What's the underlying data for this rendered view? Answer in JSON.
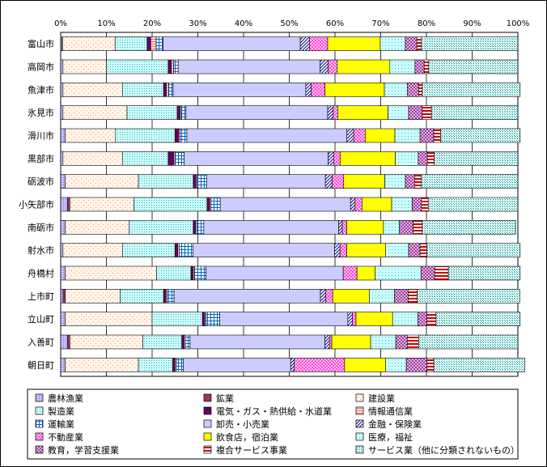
{
  "chart_data": {
    "type": "bar",
    "orientation": "horizontal",
    "stacked": "percent",
    "xlim": [
      0,
      100
    ],
    "x_ticks": [
      "0%",
      "10%",
      "20%",
      "30%",
      "40%",
      "50%",
      "60%",
      "70%",
      "80%",
      "90%",
      "100%"
    ],
    "grid": true,
    "legend_position": "bottom",
    "categories": [
      "富山市",
      "高岡市",
      "魚津市",
      "氷見市",
      "滑川市",
      "黒部市",
      "砺波市",
      "小矢部市",
      "南砺市",
      "射水市",
      "舟橋村",
      "上市町",
      "立山町",
      "入善町",
      "朝日町"
    ],
    "series": [
      {
        "name": "農林漁業",
        "color": "#c0c0ff",
        "values": [
          0.3,
          0.5,
          0.5,
          0.5,
          1.0,
          0.5,
          1.0,
          1.5,
          1.0,
          0.5,
          1.0,
          0.5,
          1.0,
          1.5,
          1.0
        ]
      },
      {
        "name": "鉱業",
        "color": "#993366",
        "values": [
          0.1,
          0.0,
          0.0,
          0.0,
          0.0,
          0.0,
          0.0,
          0.5,
          0.0,
          0.0,
          0.0,
          0.5,
          0.0,
          0.5,
          0.0
        ]
      },
      {
        "name": "建設業",
        "color": "#ffeedd",
        "values": [
          11.5,
          9.5,
          13.0,
          14.0,
          11.0,
          13.0,
          16.0,
          14.0,
          14.0,
          13.0,
          20.0,
          12.0,
          19.0,
          16.0,
          16.0
        ]
      },
      {
        "name": "製造業",
        "color": "#ccffff",
        "values": [
          7.0,
          13.5,
          9.0,
          11.0,
          13.0,
          10.0,
          12.0,
          16.0,
          14.0,
          11.5,
          7.5,
          9.5,
          11.0,
          8.5,
          7.5
        ]
      },
      {
        "name": "電気・ガス・熱供給・水道業",
        "color": "#660066",
        "values": [
          0.8,
          0.7,
          0.6,
          0.6,
          0.8,
          1.2,
          0.6,
          0.6,
          0.5,
          0.6,
          0.5,
          0.5,
          0.5,
          0.5,
          0.5
        ]
      },
      {
        "name": "情報通信業",
        "color": "#ff9999",
        "values": [
          1.2,
          0.5,
          0.5,
          0.3,
          0.3,
          0.3,
          0.3,
          0.3,
          0.3,
          0.3,
          0.3,
          0.3,
          0.3,
          0.3,
          0.3
        ]
      },
      {
        "name": "運輸業",
        "color": "#0066cc",
        "values": [
          1.5,
          1.0,
          1.0,
          1.0,
          1.5,
          2.0,
          2.0,
          2.0,
          1.5,
          3.0,
          2.5,
          1.5,
          3.0,
          1.0,
          1.5
        ]
      },
      {
        "name": "卸売・小売業",
        "color": "#ccccff",
        "values": [
          30.0,
          31.0,
          29.0,
          31.0,
          35.0,
          31.5,
          26.0,
          28.5,
          29.5,
          31.0,
          30.0,
          32.0,
          28.0,
          29.5,
          23.5
        ]
      },
      {
        "name": "金融・保険業",
        "color": "#000080",
        "values": [
          2.0,
          1.8,
          1.2,
          1.2,
          1.5,
          1.2,
          1.5,
          1.0,
          0.8,
          1.2,
          0.0,
          1.2,
          1.0,
          1.0,
          0.8
        ]
      },
      {
        "name": "不動産業",
        "color": "#ff00ff",
        "values": [
          4.0,
          2.0,
          3.0,
          1.0,
          2.5,
          1.5,
          2.5,
          1.5,
          1.0,
          1.5,
          3.0,
          1.5,
          0.8,
          0.5,
          11.0
        ]
      },
      {
        "name": "飲食店，宿泊業",
        "color": "#ffff00",
        "values": [
          11.5,
          11.5,
          13.0,
          11.0,
          6.5,
          12.0,
          9.0,
          6.5,
          8.0,
          8.5,
          4.0,
          8.0,
          8.0,
          8.5,
          9.0
        ]
      },
      {
        "name": "医療，福祉",
        "color": "#00ffff",
        "values": [
          5.5,
          5.5,
          5.0,
          4.5,
          5.5,
          5.0,
          4.5,
          4.5,
          3.5,
          5.0,
          10.0,
          5.5,
          5.5,
          5.5,
          4.5
        ]
      },
      {
        "name": "教育，学習支援業",
        "color": "#800080",
        "values": [
          2.5,
          2.0,
          2.5,
          3.0,
          3.0,
          2.0,
          2.0,
          2.0,
          3.0,
          2.5,
          3.0,
          3.0,
          2.0,
          2.5,
          4.5
        ]
      },
      {
        "name": "複合サービス事業",
        "color": "#800000",
        "values": [
          1.0,
          1.0,
          0.8,
          2.0,
          1.5,
          1.5,
          1.5,
          1.5,
          2.0,
          1.5,
          3.0,
          2.0,
          2.0,
          2.5,
          1.5
        ]
      },
      {
        "name": "サービス業（他に分類されないもの）",
        "color": "#008080",
        "values": [
          21.1,
          19.5,
          21.4,
          18.9,
          17.4,
          18.3,
          21.1,
          19.6,
          20.4,
          20.4,
          15.7,
          22.4,
          18.4,
          21.7,
          19.9
        ]
      }
    ]
  }
}
